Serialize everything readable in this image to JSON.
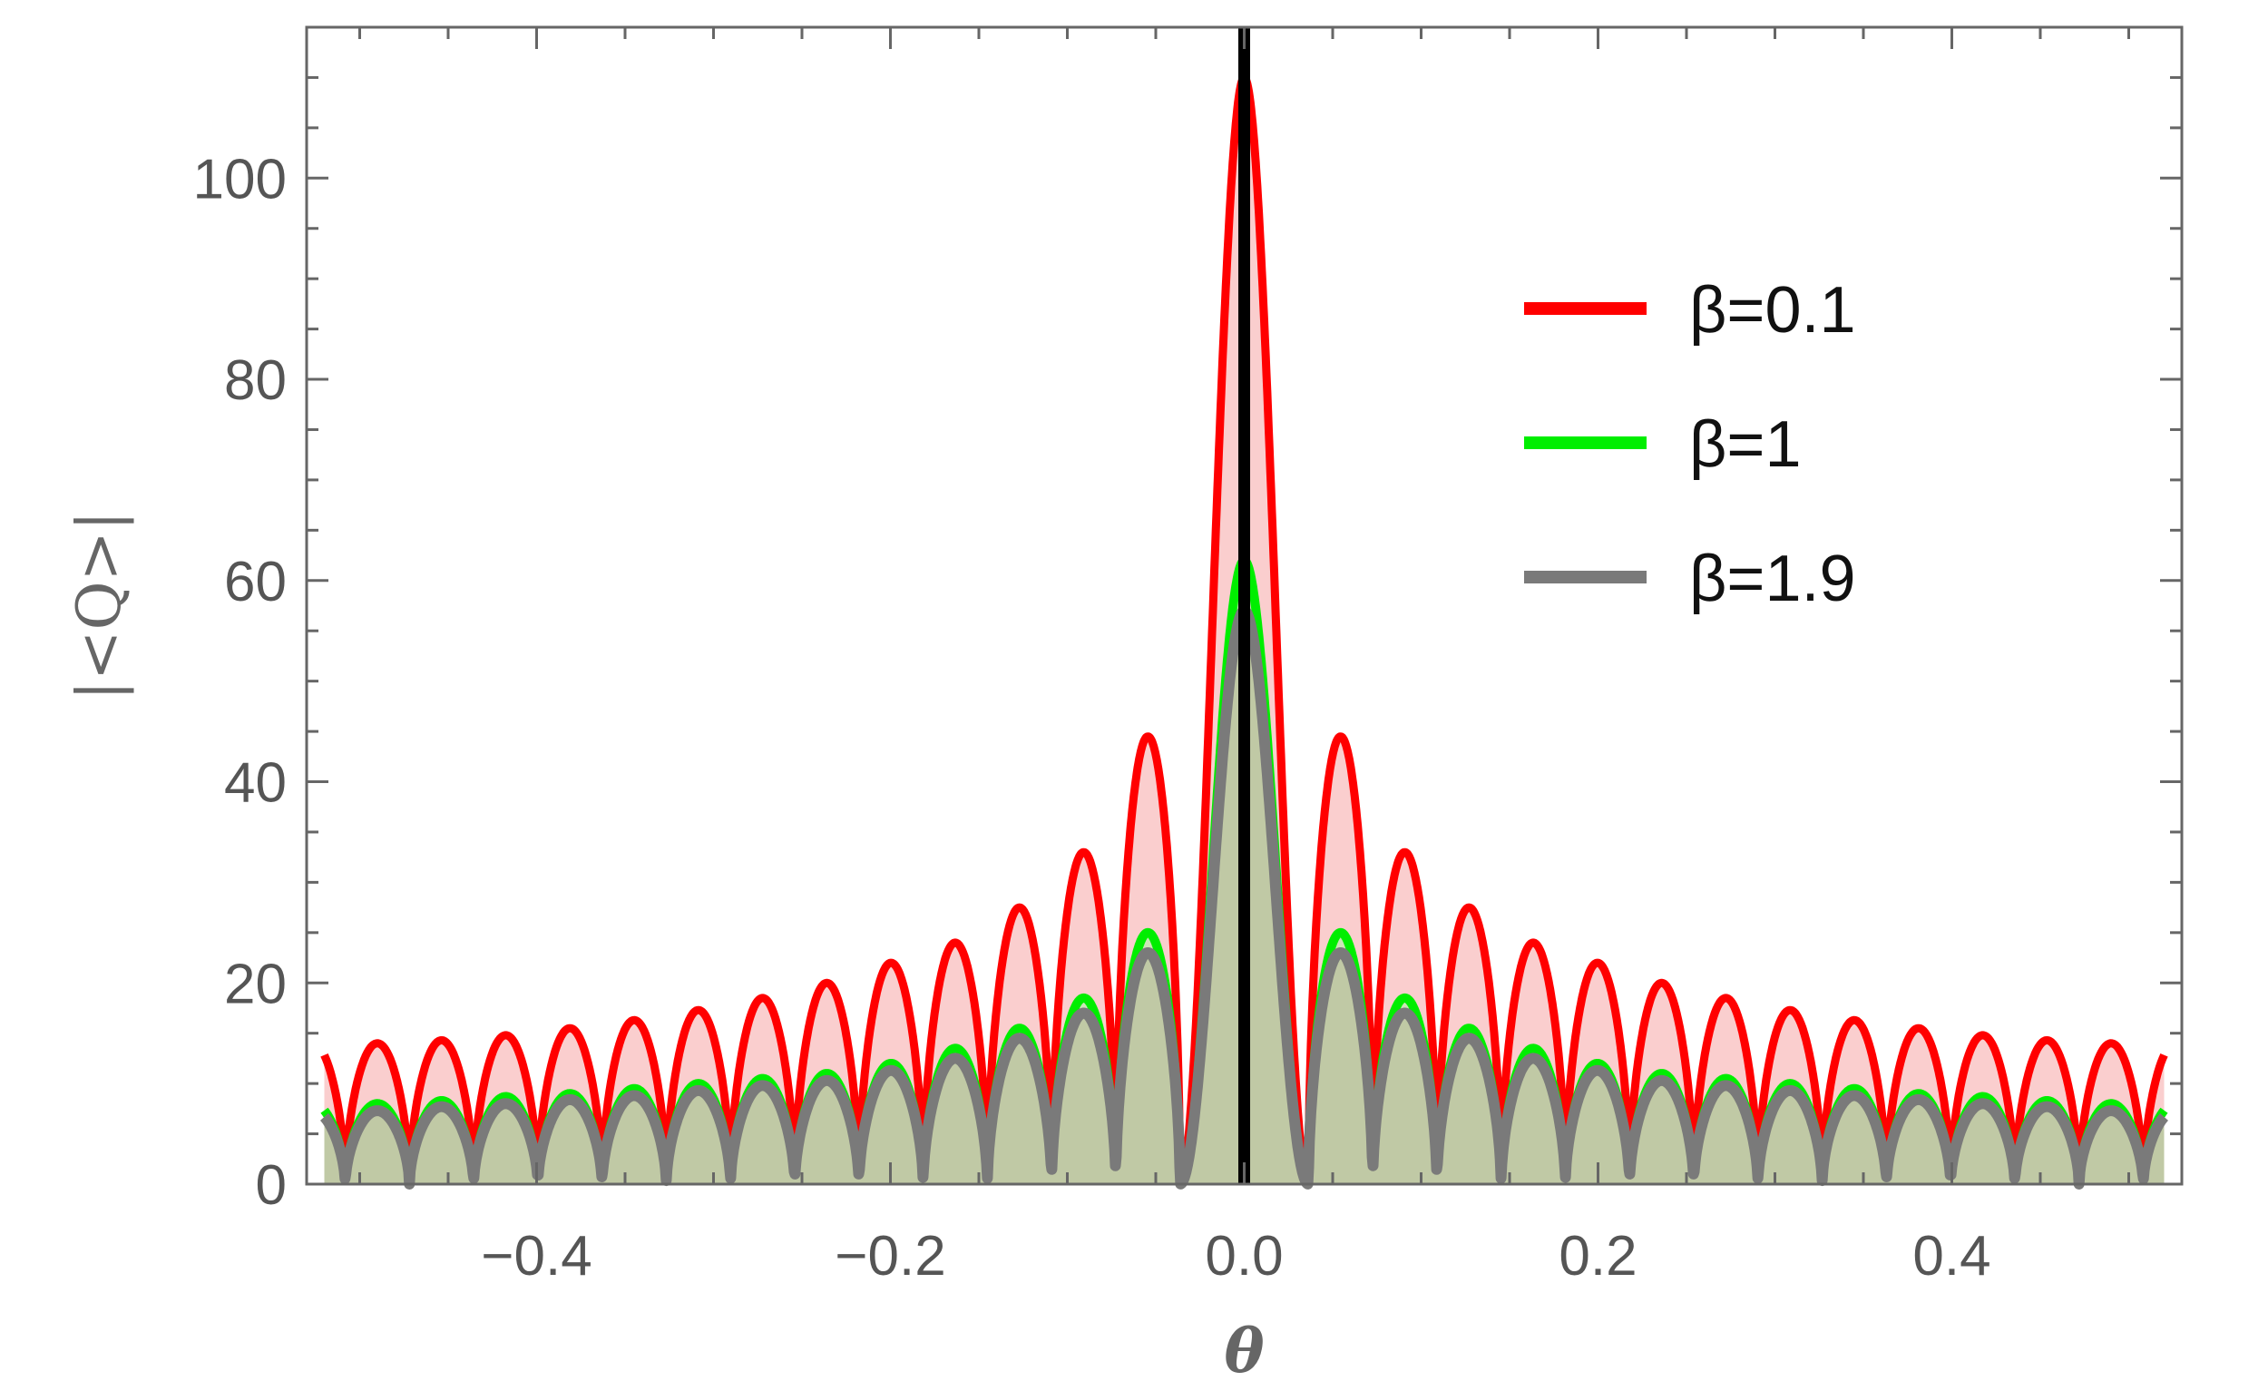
{
  "chart_data": {
    "type": "area",
    "title": "",
    "xlabel": "θ",
    "ylabel": "|<Q>|",
    "xlim": [
      -0.53,
      0.53
    ],
    "ylim": [
      0,
      115
    ],
    "x_ticks": [
      -0.4,
      -0.2,
      0.0,
      0.2,
      0.4
    ],
    "x_tick_labels": [
      "−0.4",
      "−0.2",
      "0.0",
      "0.2",
      "0.4"
    ],
    "y_ticks": [
      0,
      20,
      40,
      60,
      80,
      100
    ],
    "y_tick_labels": [
      "0",
      "20",
      "40",
      "60",
      "80",
      "100"
    ],
    "grid": false,
    "legend_position": "right",
    "x_range_of_curves": [
      -0.52,
      0.52
    ],
    "lobe_period": 0.0363,
    "center_line": {
      "x": 0.0,
      "color": "#000000"
    },
    "series": [
      {
        "name": "β=0.1",
        "color": "#ff0000",
        "fill": "#f9c6c6",
        "peak": 110,
        "lobe_peaks": [
          44.5,
          33,
          27.5,
          24,
          22,
          20,
          18.5,
          17.3,
          16.3,
          15.5,
          14.8,
          14.3,
          14
        ]
      },
      {
        "name": "β=1",
        "color": "#00ee00",
        "fill": "#c8e6b4",
        "peak": 62,
        "lobe_peaks": [
          25,
          18.5,
          15.5,
          13.5,
          12,
          11,
          10.5,
          10,
          9.5,
          9,
          8.7,
          8.3,
          8
        ]
      },
      {
        "name": "β=1.9",
        "color": "#7a7a7a",
        "fill": "#bfc7a4",
        "peak": 57,
        "lobe_peaks": [
          23,
          17,
          14.5,
          12.5,
          11.3,
          10.3,
          9.8,
          9.3,
          8.8,
          8.4,
          8,
          7.7,
          7.3
        ]
      }
    ]
  }
}
